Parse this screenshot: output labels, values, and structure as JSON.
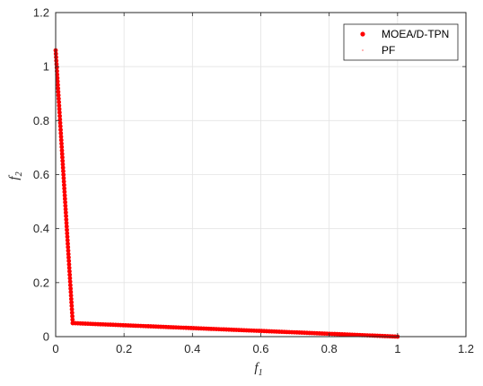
{
  "chart_data": {
    "type": "scatter",
    "title": "",
    "xlabel": "f",
    "xlabel_sub": "1",
    "ylabel": "f",
    "ylabel_sub": "2",
    "xlim": [
      0,
      1.2
    ],
    "ylim": [
      0,
      1.2
    ],
    "xticks": [
      "0",
      "0.2",
      "0.4",
      "0.6",
      "0.8",
      "1",
      "1.2"
    ],
    "yticks": [
      "0",
      "0.2",
      "0.4",
      "0.6",
      "0.8",
      "1",
      "1.2"
    ],
    "grid": true,
    "legend_position": "top-right",
    "colors": {
      "series": "#ff0000",
      "grid": "#e3e3e3",
      "axis": "#262626"
    },
    "series": [
      {
        "name": "MOEA/D-TPN",
        "marker": "dot",
        "segments": [
          {
            "from": [
              0.0,
              1.06
            ],
            "to": [
              0.05,
              0.05
            ],
            "points": 80
          },
          {
            "from": [
              0.05,
              0.05
            ],
            "to": [
              1.0,
              0.0
            ],
            "points": 130
          }
        ]
      },
      {
        "name": "PF",
        "marker": "point",
        "segments": [
          {
            "from": [
              0.0,
              1.0
            ],
            "to": [
              0.05,
              0.05
            ],
            "points": 40
          },
          {
            "from": [
              0.05,
              0.05
            ],
            "to": [
              1.0,
              0.0
            ],
            "points": 60
          }
        ]
      }
    ]
  }
}
